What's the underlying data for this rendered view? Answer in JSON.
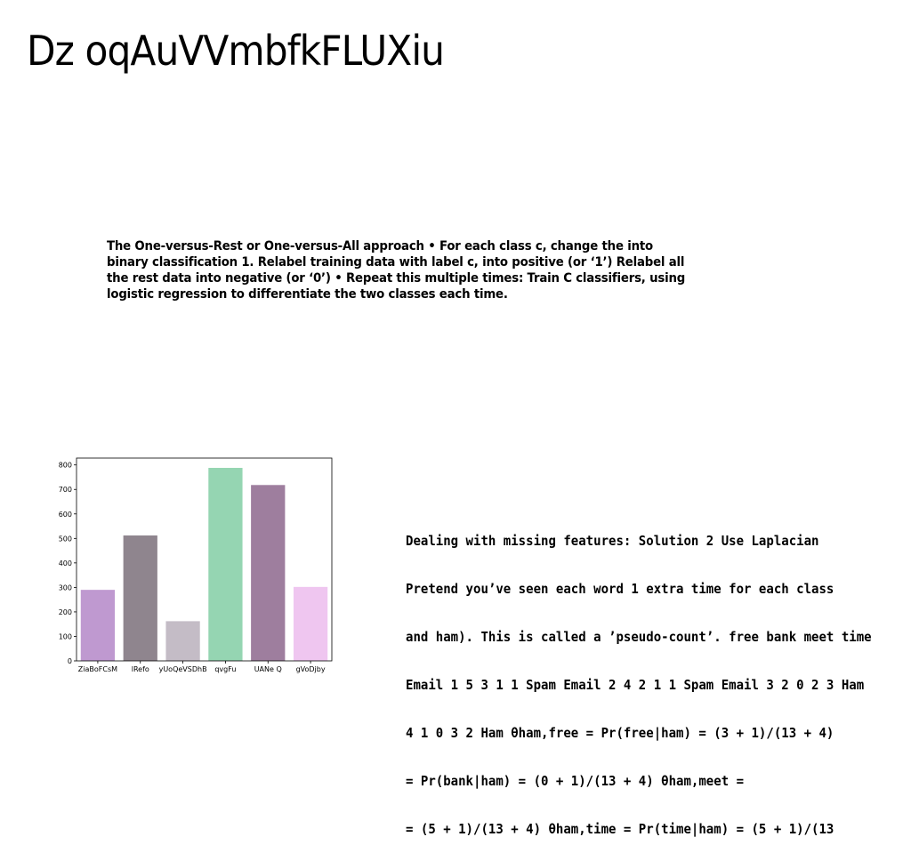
{
  "slide": {
    "title": "Dz oqAuVVmbfkFLUXiu",
    "paragraph1": "The One-versus-Rest or One-versus-All approach • For each class c, change the into binary classification 1. Relabel training data with label c, into positive (or ‘1’) Relabel all the rest data into negative (or ‘0’) • Repeat this multiple times: Train C classifiers, using logistic regression to differentiate the two classes each time.",
    "paragraph2_lines": [
      "Dealing with missing features: Solution 2 Use Laplacian",
      "Pretend you’ve seen each word 1 extra time for each class",
      "and ham). This is called a ’pseudo-count’. free bank meet time",
      "Email 1 5 3 1 1 Spam Email 2 4 2 1 1 Spam Email 3 2 0 2 3 Ham",
      "4 1 0 3 2 Ham θham,free = Pr(free|ham) = (3 + 1)/(13 + 4)",
      "= Pr(bank|ham) = (0 + 1)/(13 + 4) θham,meet =",
      "= (5 + 1)/(13 + 4) θham,time = Pr(time|ham) = (5 + 1)/(13"
    ]
  },
  "chart_data": {
    "type": "bar",
    "categories": [
      "ZiaBoFCsM",
      "lRefo",
      "yUoQeVSDhB",
      "qvgFu",
      "UANe Q",
      "gVoDjby"
    ],
    "values": [
      290,
      512,
      162,
      788,
      718,
      302
    ],
    "colors": [
      "#bf99d0",
      "#8f858e",
      "#c4bcc6",
      "#95d5b2",
      "#9e7e9e",
      "#efc6f0"
    ],
    "yticks": [
      0,
      100,
      200,
      300,
      400,
      500,
      600,
      700,
      800
    ],
    "ylim": [
      0,
      828
    ],
    "title": "",
    "xlabel": "",
    "ylabel": ""
  }
}
